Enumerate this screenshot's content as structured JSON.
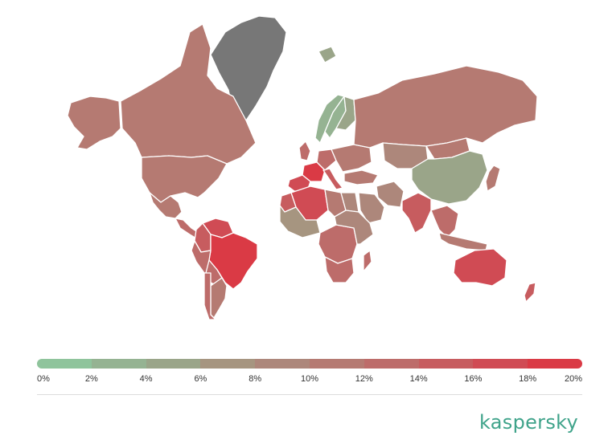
{
  "legend": {
    "colors": [
      "#8fc49c",
      "#95b392",
      "#9aa589",
      "#a69580",
      "#ad877b",
      "#b57a72",
      "#bd6c6a",
      "#c75c5f",
      "#d04b54",
      "#da3a45"
    ],
    "labels": [
      "0%",
      "2%",
      "4%",
      "6%",
      "8%",
      "10%",
      "12%",
      "14%",
      "16%",
      "18%",
      "20%"
    ]
  },
  "brand": {
    "name": "kaspersky"
  },
  "map_data": {
    "type": "choropleth",
    "no_data_color": "#777777",
    "regions": [
      {
        "name": "Greenland",
        "value": null
      },
      {
        "name": "Alaska",
        "value": 10
      },
      {
        "name": "Canada",
        "value": 10
      },
      {
        "name": "United States",
        "value": 10
      },
      {
        "name": "Mexico",
        "value": 11
      },
      {
        "name": "Central America",
        "value": 12
      },
      {
        "name": "Venezuela",
        "value": 17
      },
      {
        "name": "Colombia",
        "value": 15
      },
      {
        "name": "Brazil",
        "value": 19
      },
      {
        "name": "Peru",
        "value": 13
      },
      {
        "name": "Bolivia",
        "value": 12
      },
      {
        "name": "Argentina",
        "value": 11
      },
      {
        "name": "Chile",
        "value": 12
      },
      {
        "name": "Iceland",
        "value": 4
      },
      {
        "name": "Norway",
        "value": 3
      },
      {
        "name": "Sweden",
        "value": 3
      },
      {
        "name": "Finland",
        "value": 5
      },
      {
        "name": "United Kingdom",
        "value": 12
      },
      {
        "name": "France",
        "value": 18
      },
      {
        "name": "Spain",
        "value": 16
      },
      {
        "name": "Italy",
        "value": 15
      },
      {
        "name": "Germany",
        "value": 12
      },
      {
        "name": "Eastern Europe",
        "value": 10
      },
      {
        "name": "Russia",
        "value": 10
      },
      {
        "name": "Kazakhstan",
        "value": 8
      },
      {
        "name": "Mongolia",
        "value": 11
      },
      {
        "name": "China",
        "value": 5
      },
      {
        "name": "Turkey",
        "value": 10
      },
      {
        "name": "Iran",
        "value": 8
      },
      {
        "name": "Saudi Arabia",
        "value": 8
      },
      {
        "name": "India",
        "value": 14
      },
      {
        "name": "Southeast Asia",
        "value": 12
      },
      {
        "name": "Japan",
        "value": 10
      },
      {
        "name": "Algeria",
        "value": 17
      },
      {
        "name": "Morocco",
        "value": 14
      },
      {
        "name": "Libya",
        "value": 10
      },
      {
        "name": "Egypt",
        "value": 9
      },
      {
        "name": "West Africa",
        "value": 7
      },
      {
        "name": "Central Africa",
        "value": 12
      },
      {
        "name": "East Africa",
        "value": 9
      },
      {
        "name": "South Africa",
        "value": 13
      },
      {
        "name": "Madagascar",
        "value": 12
      },
      {
        "name": "Indonesia",
        "value": 11
      },
      {
        "name": "Australia",
        "value": 17
      },
      {
        "name": "New Zealand",
        "value": 15
      }
    ]
  }
}
